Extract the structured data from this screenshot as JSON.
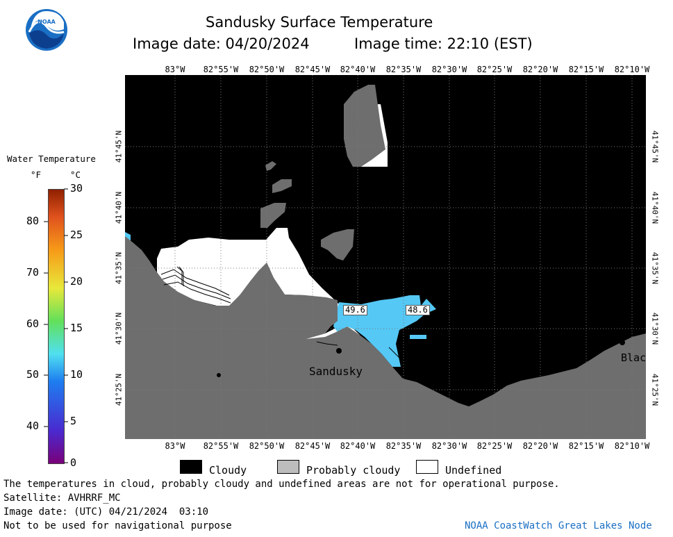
{
  "header": {
    "title": "Sandusky Surface Temperature",
    "image_date_label": "Image date: 04/20/2024",
    "image_time_label": "Image time: 22:10 (EST)"
  },
  "logo": {
    "text": "NOAA"
  },
  "colorbar": {
    "title": "Water Temperature",
    "unit_f": "°F",
    "unit_c": "°C",
    "f_ticks": [
      "80",
      "70",
      "60",
      "50",
      "40"
    ],
    "c_ticks": [
      "30",
      "25",
      "20",
      "15",
      "10",
      "5",
      "0"
    ]
  },
  "map": {
    "lon_labels": [
      "83°W",
      "82°55'W",
      "82°50'W",
      "82°45'W",
      "82°40'W",
      "82°35'W",
      "82°30'W",
      "82°25'W",
      "82°20'W",
      "82°15'W",
      "82°10'W"
    ],
    "lat_labels": [
      "41°45'N",
      "41°40'N",
      "41°35'N",
      "41°30'N",
      "41°25'N"
    ],
    "temp_labels": [
      "49.6",
      "48.6"
    ],
    "place_labels": [
      "Sandusky",
      "Blac"
    ],
    "colors": {
      "cloudy": "#000000",
      "probably_cloudy": "#6e6e6e",
      "undefined": "#ffffff",
      "water": "#55c8f5"
    }
  },
  "legend": {
    "cloudy": "Cloudy",
    "probably_cloudy": "Probably cloudy",
    "undefined": "Undefined"
  },
  "footer": {
    "disclaimer": "The temperatures in cloud, probably cloudy and undefined areas are not for operational purpose.",
    "satellite": "Satellite: AVHRRF_MC",
    "utc_date": "Image date: (UTC) 04/21/2024  03:10",
    "nav_warning": "Not to be used for navigational purpose",
    "credit": "NOAA CoastWatch Great Lakes Node"
  }
}
